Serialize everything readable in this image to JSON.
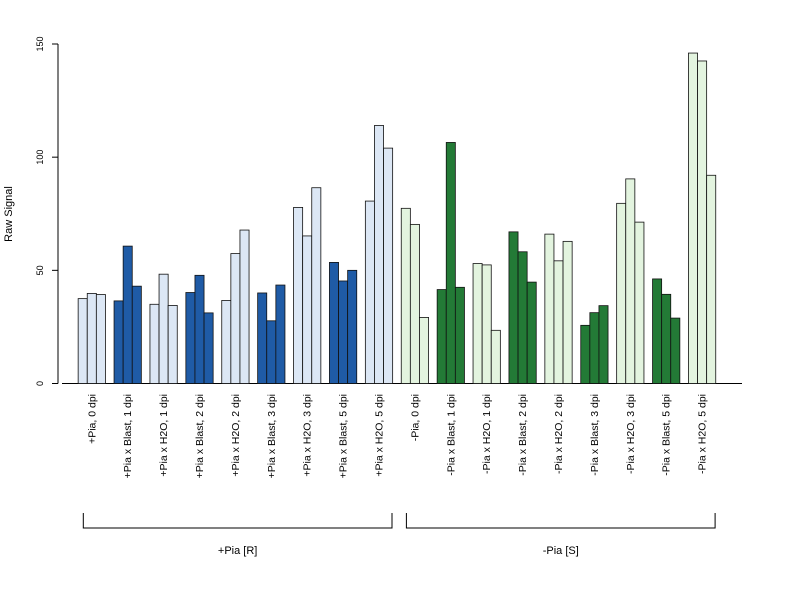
{
  "chart_data": {
    "type": "bar",
    "ylabel": "Raw Signal",
    "ylim": [
      0,
      150
    ],
    "yticks": [
      0,
      50,
      100,
      150
    ],
    "grid": false,
    "legend": "none",
    "categories": [
      "+Pia, 0 dpi",
      "+Pia x Blast, 1 dpi",
      "+Pia x H2O, 1 dpi",
      "+Pia x Blast, 2 dpi",
      "+Pia x H2O, 2 dpi",
      "+Pia x Blast, 3 dpi",
      "+Pia x H2O, 3 dpi",
      "+Pia x Blast, 5 dpi",
      "+Pia x H2O, 5 dpi",
      "-Pia, 0 dpi",
      "-Pia x Blast, 1 dpi",
      "-Pia x H2O, 1 dpi",
      "-Pia x Blast, 2 dpi",
      "-Pia x H2O, 2 dpi",
      "-Pia x Blast, 3 dpi",
      "-Pia x H2O, 3 dpi",
      "-Pia x Blast, 5 dpi",
      "-Pia x H2O, 5 dpi"
    ],
    "replicates": [
      [
        37.5,
        39.8,
        39.3
      ],
      [
        36.5,
        60.7,
        43.0
      ],
      [
        35.0,
        48.3,
        34.5
      ],
      [
        40.2,
        47.8,
        31.2
      ],
      [
        36.7,
        57.4,
        67.8
      ],
      [
        40.0,
        27.7,
        43.5
      ],
      [
        77.8,
        65.2,
        86.5
      ],
      [
        53.5,
        45.3,
        50.0
      ],
      [
        80.6,
        114.0,
        104.0
      ],
      [
        77.4,
        70.3,
        29.2
      ],
      [
        41.5,
        106.5,
        42.5
      ],
      [
        53.0,
        52.4,
        23.5
      ],
      [
        67.0,
        58.2,
        44.8
      ],
      [
        66.0,
        54.2,
        62.8
      ],
      [
        25.7,
        31.3,
        34.4
      ],
      [
        79.6,
        90.4,
        71.3
      ],
      [
        46.2,
        39.4,
        28.9
      ],
      [
        146.0,
        142.5,
        92.0
      ]
    ],
    "bar_colors": [
      "#dce7f5",
      "#1f5ba6",
      "#dce7f5",
      "#1f5ba6",
      "#dce7f5",
      "#1f5ba6",
      "#dce7f5",
      "#1f5ba6",
      "#dce7f5",
      "#e3f4df",
      "#237a36",
      "#e3f4df",
      "#237a36",
      "#e3f4df",
      "#237a36",
      "#e3f4df",
      "#237a36",
      "#e3f4df"
    ],
    "groups": [
      {
        "label": "+Pia [R]",
        "start": 0,
        "end": 8
      },
      {
        "label": "-Pia [S]",
        "start": 9,
        "end": 17
      }
    ]
  }
}
